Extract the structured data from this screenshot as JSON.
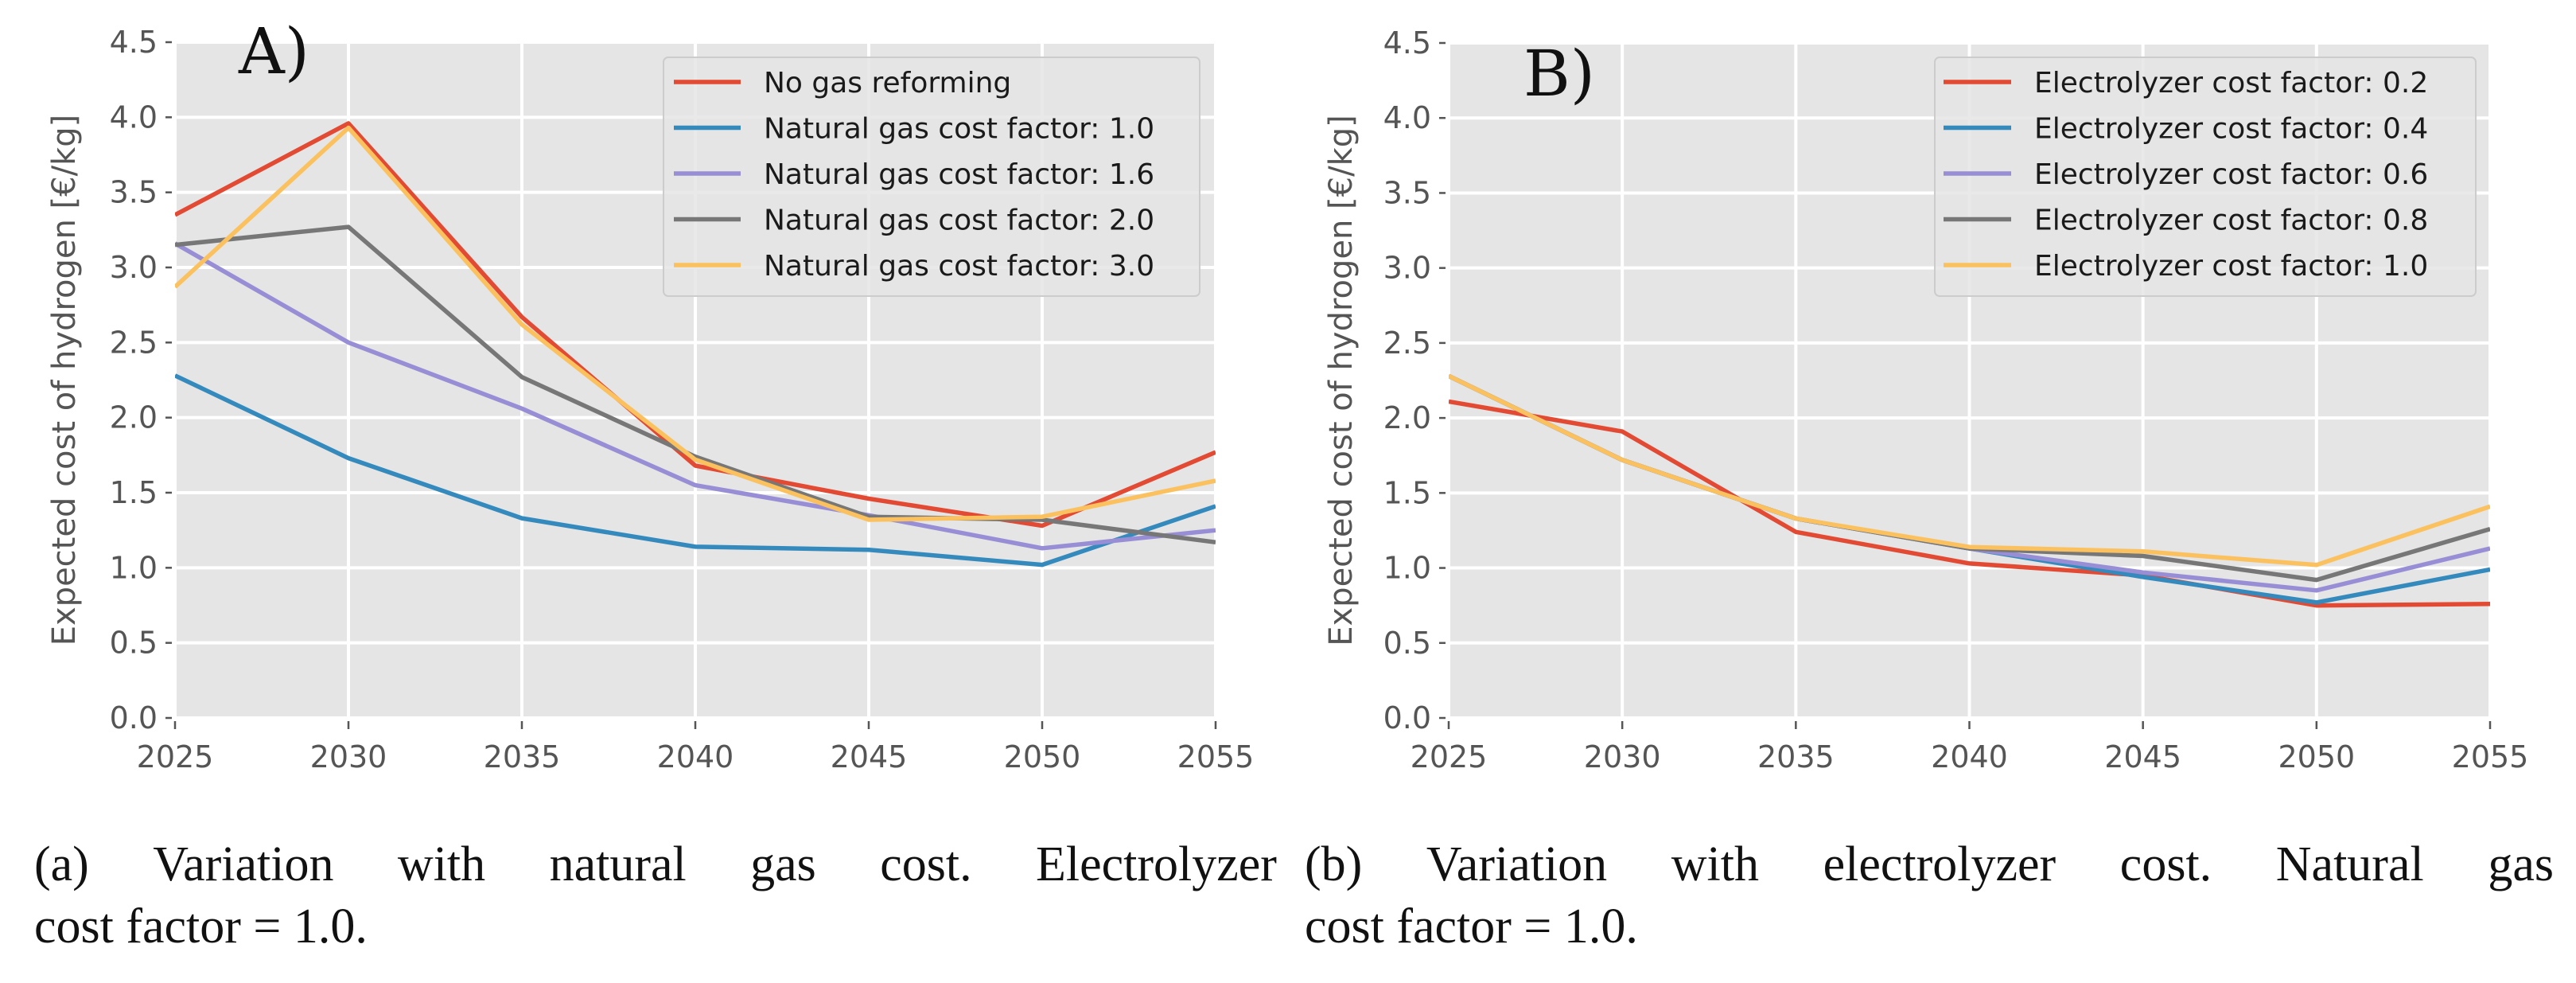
{
  "chart_data": [
    {
      "type": "line",
      "panel_label": "A)",
      "title": "",
      "xlabel": "",
      "ylabel": "Expected cost of hydrogen [€/kg]",
      "x": [
        2025,
        2030,
        2035,
        2040,
        2045,
        2050,
        2055
      ],
      "xlim": [
        2025,
        2055
      ],
      "ylim": [
        0,
        4.5
      ],
      "xticks": [
        "2025",
        "2030",
        "2035",
        "2040",
        "2045",
        "2050",
        "2055"
      ],
      "yticks": [
        "0.0",
        "0.5",
        "1.0",
        "1.5",
        "2.0",
        "2.5",
        "3.0",
        "3.5",
        "4.0",
        "4.5"
      ],
      "grid": true,
      "legend_position": "top-right",
      "series": [
        {
          "name": "No gas reforming",
          "color": "#E24A33",
          "values": [
            3.35,
            3.96,
            2.67,
            1.68,
            1.46,
            1.28,
            1.77
          ]
        },
        {
          "name": "Natural gas cost factor: 1.0",
          "color": "#348ABD",
          "values": [
            2.28,
            1.73,
            1.33,
            1.14,
            1.12,
            1.02,
            1.41
          ]
        },
        {
          "name": "Natural gas cost factor: 1.6",
          "color": "#988ED5",
          "values": [
            3.16,
            2.5,
            2.06,
            1.55,
            1.35,
            1.13,
            1.25
          ]
        },
        {
          "name": "Natural gas cost factor: 2.0",
          "color": "#777777",
          "values": [
            3.15,
            3.27,
            2.27,
            1.74,
            1.34,
            1.32,
            1.17
          ]
        },
        {
          "name": "Natural gas cost factor: 3.0",
          "color": "#FBC15E",
          "values": [
            2.87,
            3.93,
            2.62,
            1.72,
            1.32,
            1.34,
            1.58
          ]
        }
      ],
      "caption": {
        "line1_words": [
          "(a)",
          "Variation",
          "with",
          "natural",
          "gas",
          "cost.",
          "Electrolyzer"
        ],
        "line2": "cost factor = 1.0."
      }
    },
    {
      "type": "line",
      "panel_label": "B)",
      "title": "",
      "xlabel": "",
      "ylabel": "Expected cost of hydrogen [€/kg]",
      "x": [
        2025,
        2030,
        2035,
        2040,
        2045,
        2050,
        2055
      ],
      "xlim": [
        2025,
        2055
      ],
      "ylim": [
        0,
        4.5
      ],
      "xticks": [
        "2025",
        "2030",
        "2035",
        "2040",
        "2045",
        "2050",
        "2055"
      ],
      "yticks": [
        "0.0",
        "0.5",
        "1.0",
        "1.5",
        "2.0",
        "2.5",
        "3.0",
        "3.5",
        "4.0",
        "4.5"
      ],
      "grid": true,
      "legend_position": "top-right",
      "series": [
        {
          "name": "Electrolyzer cost factor: 0.2",
          "color": "#E24A33",
          "values": [
            2.11,
            1.91,
            1.24,
            1.03,
            0.95,
            0.75,
            0.76
          ]
        },
        {
          "name": "Electrolyzer cost factor: 0.4",
          "color": "#348ABD",
          "values": [
            2.28,
            1.72,
            1.33,
            1.13,
            0.94,
            0.77,
            0.99
          ]
        },
        {
          "name": "Electrolyzer cost factor: 0.6",
          "color": "#988ED5",
          "values": [
            2.28,
            1.72,
            1.33,
            1.13,
            0.97,
            0.85,
            1.13
          ]
        },
        {
          "name": "Electrolyzer cost factor: 0.8",
          "color": "#777777",
          "values": [
            2.28,
            1.72,
            1.33,
            1.13,
            1.08,
            0.92,
            1.26
          ]
        },
        {
          "name": "Electrolyzer cost factor: 1.0",
          "color": "#FBC15E",
          "values": [
            2.28,
            1.72,
            1.33,
            1.14,
            1.11,
            1.02,
            1.41
          ]
        }
      ],
      "caption": {
        "line1_words": [
          "(b)",
          "Variation",
          "with",
          "electrolyzer",
          "cost.",
          "Natural",
          "gas"
        ],
        "line2": "cost factor = 1.0."
      }
    }
  ],
  "style": {
    "plot_background": "#E5E5E5",
    "grid_color": "#FFFFFF",
    "tick_color": "#555555",
    "legend_background": "#E5E5E5",
    "legend_border": "#CCCCCC"
  }
}
